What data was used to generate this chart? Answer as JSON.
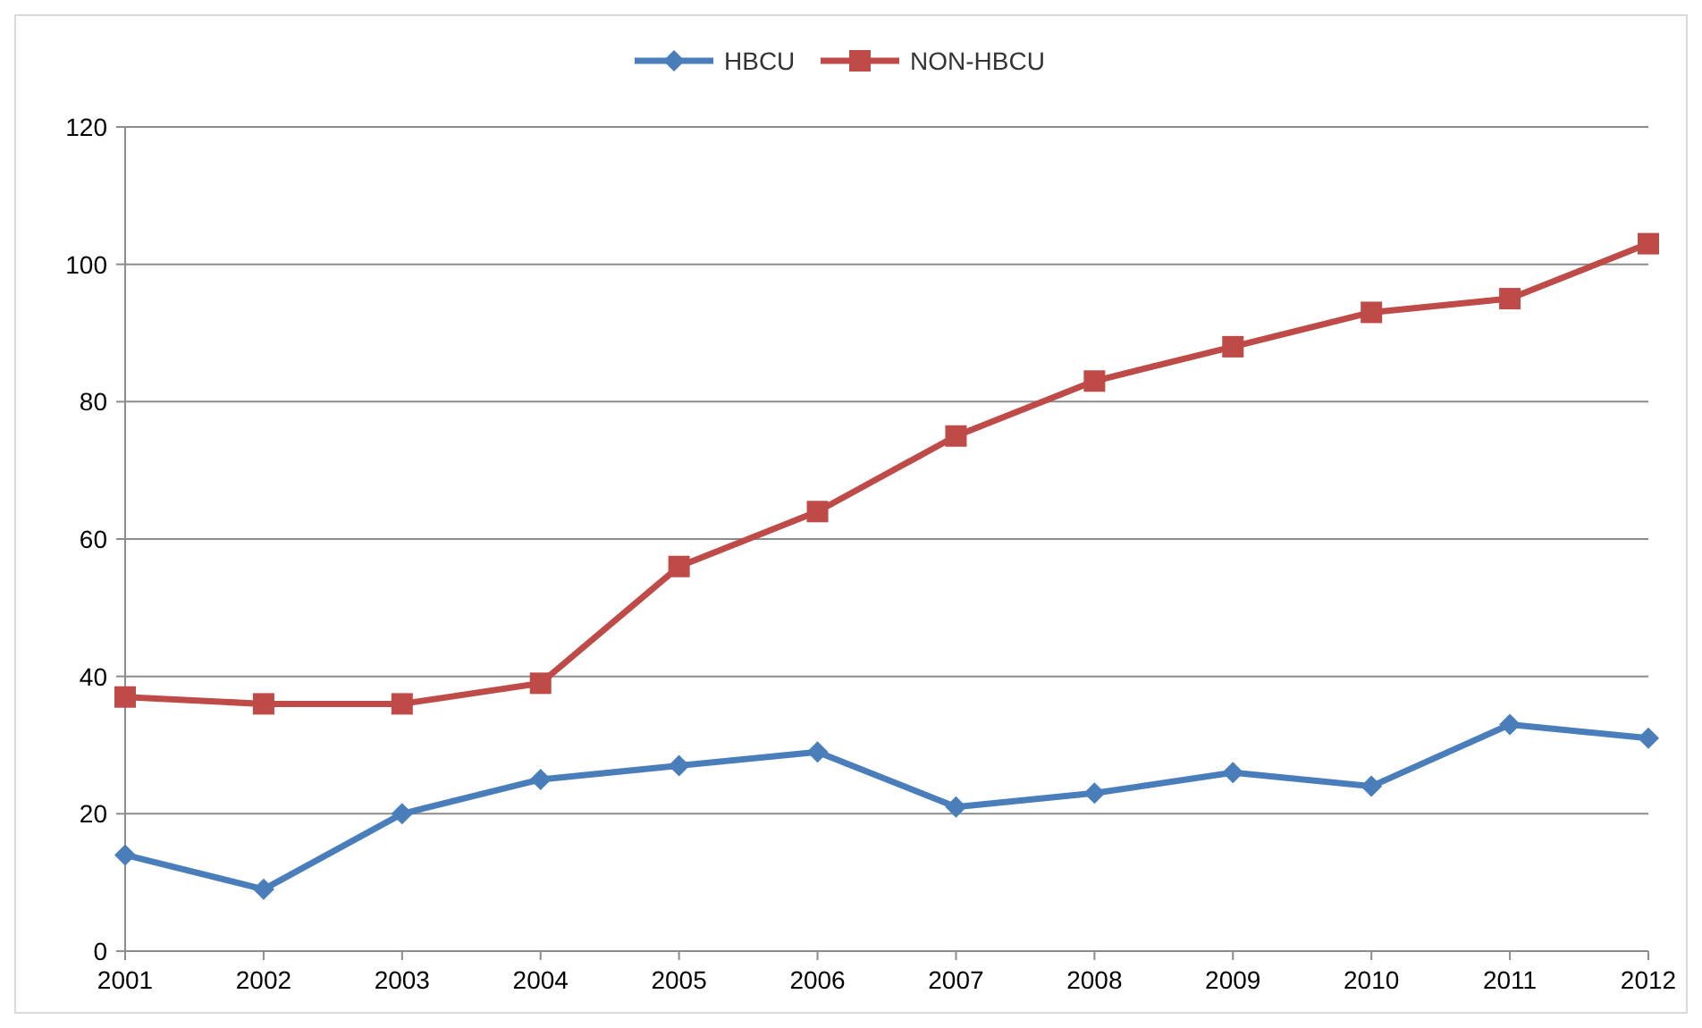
{
  "chart_data": {
    "type": "line",
    "categories": [
      "2001",
      "2002",
      "2003",
      "2004",
      "2005",
      "2006",
      "2007",
      "2008",
      "2009",
      "2010",
      "2011",
      "2012"
    ],
    "series": [
      {
        "name": "HBCU",
        "color": "#4a7ebb",
        "marker": "diamond",
        "values": [
          14,
          9,
          20,
          25,
          27,
          29,
          21,
          23,
          26,
          24,
          33,
          31
        ]
      },
      {
        "name": "NON-HBCU",
        "color": "#be4b48",
        "marker": "square",
        "values": [
          37,
          36,
          36,
          39,
          56,
          64,
          75,
          83,
          88,
          93,
          95,
          103
        ]
      }
    ],
    "ylim": [
      0,
      120
    ],
    "yticks": [
      0,
      20,
      40,
      60,
      80,
      100,
      120
    ],
    "grid": "y",
    "legend": "top",
    "line_style": "solid"
  }
}
